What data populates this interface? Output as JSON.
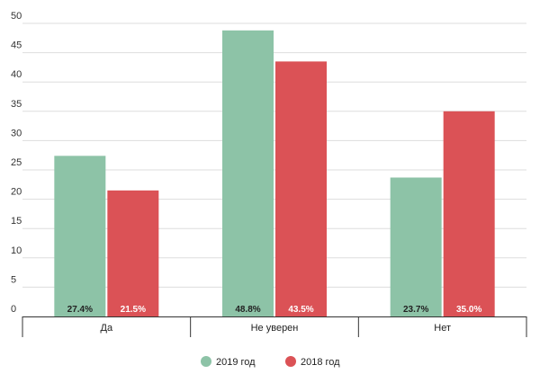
{
  "chart_data": {
    "type": "bar",
    "categories": [
      "Да",
      "Не уверен",
      "Нет"
    ],
    "series": [
      {
        "name": "2019 год",
        "color": "#8dc3a7",
        "values": [
          27.4,
          48.8,
          23.7
        ],
        "labels": [
          "27.4%",
          "48.8%",
          "23.7%"
        ],
        "label_color": "#222222"
      },
      {
        "name": "2018 год",
        "color": "#db5256",
        "values": [
          21.5,
          43.5,
          35.0
        ],
        "labels": [
          "21.5%",
          "43.5%",
          "35.0%"
        ],
        "label_color": "#ffffff"
      }
    ],
    "yticks": [
      "0",
      "5",
      "10",
      "15",
      "20",
      "25",
      "30",
      "35",
      "40",
      "45",
      "50"
    ],
    "ylim": [
      0,
      50
    ],
    "grid": true,
    "legend": "bottom-center",
    "title": "",
    "xlabel": "",
    "ylabel": ""
  }
}
